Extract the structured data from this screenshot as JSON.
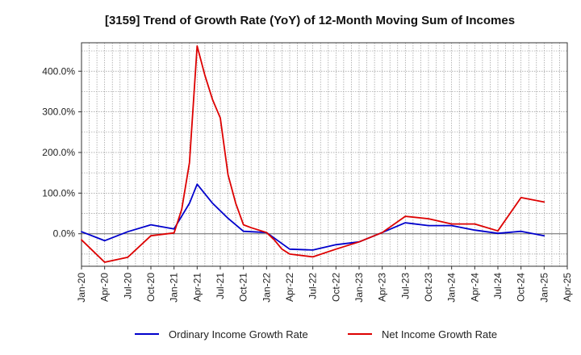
{
  "chart_data": {
    "type": "line",
    "title": "[3159]  Trend of Growth Rate (YoY) of 12-Month Moving Sum of Incomes",
    "xlabel": "",
    "ylabel": "",
    "x_tick_labels": [
      "Jan-20",
      "Apr-20",
      "Jul-20",
      "Oct-20",
      "Jan-21",
      "Apr-21",
      "Jul-21",
      "Oct-21",
      "Jan-22",
      "Apr-22",
      "Jul-22",
      "Oct-22",
      "Jan-23",
      "Apr-23",
      "Jul-23",
      "Oct-23",
      "Jan-24",
      "Apr-24",
      "Jul-24",
      "Oct-24",
      "Jan-25",
      "Apr-25"
    ],
    "xlim": [
      0,
      63
    ],
    "ylim": [
      -80,
      470
    ],
    "y_ticks": [
      0,
      100,
      200,
      300,
      400
    ],
    "y_tick_labels": [
      "0.0%",
      "100.0%",
      "200.0%",
      "300.0%",
      "400.0%"
    ],
    "grid": true,
    "legend_position": "bottom",
    "series": [
      {
        "name": "Ordinary Income Growth Rate",
        "color": "#0000cc",
        "x": [
          0,
          3,
          6,
          9,
          12,
          14,
          15,
          17,
          19,
          21,
          24,
          27,
          30,
          33,
          36,
          39,
          42,
          45,
          48,
          51,
          54,
          57,
          60
        ],
        "values": [
          5,
          -17,
          5,
          22,
          12,
          75,
          122,
          75,
          38,
          6,
          3,
          -38,
          -40,
          -27,
          -20,
          3,
          27,
          20,
          20,
          9,
          1,
          6,
          -5
        ]
      },
      {
        "name": "Net Income Growth Rate",
        "color": "#dd0000",
        "x": [
          0,
          3,
          6,
          9,
          12,
          13,
          14,
          15,
          16,
          17,
          18,
          19,
          20,
          21,
          22,
          24,
          25,
          26,
          27,
          30,
          33,
          36,
          39,
          42,
          45,
          48,
          51,
          54,
          57,
          60
        ],
        "values": [
          -15,
          -70,
          -58,
          -5,
          2,
          60,
          175,
          462,
          390,
          330,
          285,
          145,
          75,
          22,
          15,
          3,
          -15,
          -38,
          -50,
          -57,
          -38,
          -20,
          3,
          43,
          37,
          24,
          24,
          7,
          89,
          78
        ]
      }
    ]
  }
}
